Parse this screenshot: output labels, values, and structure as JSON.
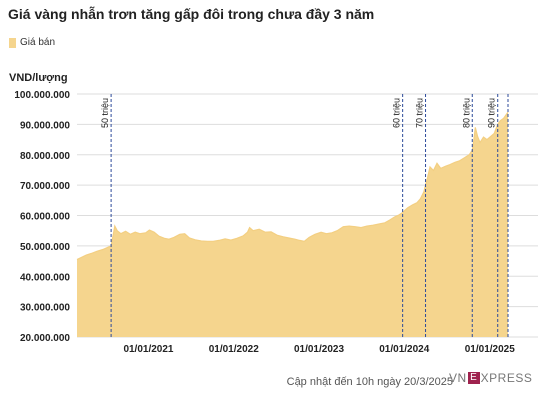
{
  "title": "Giá vàng nhẫn trơn tăng gấp đôi trong chưa đầy 3 năm",
  "footer": "Cập nhật đến 10h ngày 20/3/2025",
  "brand": {
    "pre": "VN",
    "box": "E",
    "post": "XPRESS"
  },
  "colors": {
    "area": "#f5d58e",
    "area_top": "#f3cf82",
    "dashed": "#2c4a9a",
    "grid": "#dddddd"
  },
  "chart_data": {
    "type": "area",
    "title": "Giá vàng nhẫn trơn tăng gấp đôi trong chưa đầy 3 năm",
    "ylabel": "VND/lượng",
    "legend": [
      "Giá bán"
    ],
    "ylim": [
      20000000,
      100000000
    ],
    "xlim": [
      "2020-03-01",
      "2025-03-20"
    ],
    "y_ticks": [
      {
        "value": 100000000,
        "label": "100.000.000"
      },
      {
        "value": 90000000,
        "label": "90.000.000"
      },
      {
        "value": 80000000,
        "label": "80.000.000"
      },
      {
        "value": 70000000,
        "label": "70.000.000"
      },
      {
        "value": 60000000,
        "label": "60.000.000"
      },
      {
        "value": 50000000,
        "label": "50.000.000"
      },
      {
        "value": 40000000,
        "label": "40.000.000"
      },
      {
        "value": 30000000,
        "label": "30.000.000"
      },
      {
        "value": 20000000,
        "label": "20.000.000"
      }
    ],
    "x_ticks": [
      {
        "date": "2021-01-01",
        "label": "01/01/2021"
      },
      {
        "date": "2022-01-01",
        "label": "01/01/2022"
      },
      {
        "date": "2023-01-01",
        "label": "01/01/2023"
      },
      {
        "date": "2024-01-01",
        "label": "01/01/2024"
      },
      {
        "date": "2025-01-01",
        "label": "01/01/2025"
      }
    ],
    "annotations": [
      {
        "date": "2020-07-25",
        "label": "50 triệu"
      },
      {
        "date": "2023-12-25",
        "label": "60 triệu"
      },
      {
        "date": "2024-04-01",
        "label": "70 triệu"
      },
      {
        "date": "2024-10-18",
        "label": "80 triệu"
      },
      {
        "date": "2025-02-04",
        "label": "90 triệu"
      }
    ],
    "series": [
      {
        "name": "Giá bán",
        "points": [
          [
            "2020-03-01",
            45500000
          ],
          [
            "2020-03-20",
            46200000
          ],
          [
            "2020-04-10",
            47000000
          ],
          [
            "2020-05-01",
            47500000
          ],
          [
            "2020-05-25",
            48200000
          ],
          [
            "2020-06-20",
            48800000
          ],
          [
            "2020-07-10",
            49500000
          ],
          [
            "2020-07-25",
            50000000
          ],
          [
            "2020-08-05",
            54500000
          ],
          [
            "2020-08-10",
            56500000
          ],
          [
            "2020-08-20",
            55000000
          ],
          [
            "2020-09-05",
            54000000
          ],
          [
            "2020-09-25",
            54800000
          ],
          [
            "2020-10-15",
            53800000
          ],
          [
            "2020-11-05",
            54500000
          ],
          [
            "2020-11-25",
            54000000
          ],
          [
            "2020-12-20",
            54300000
          ],
          [
            "2021-01-05",
            55200000
          ],
          [
            "2021-01-25",
            54500000
          ],
          [
            "2021-02-15",
            53200000
          ],
          [
            "2021-03-10",
            52500000
          ],
          [
            "2021-03-30",
            52200000
          ],
          [
            "2021-04-20",
            52800000
          ],
          [
            "2021-05-15",
            53800000
          ],
          [
            "2021-06-05",
            54000000
          ],
          [
            "2021-06-25",
            52600000
          ],
          [
            "2021-07-20",
            52000000
          ],
          [
            "2021-08-15",
            51600000
          ],
          [
            "2021-09-10",
            51500000
          ],
          [
            "2021-10-05",
            51500000
          ],
          [
            "2021-10-30",
            51800000
          ],
          [
            "2021-11-25",
            52300000
          ],
          [
            "2021-12-20",
            51900000
          ],
          [
            "2022-01-15",
            52500000
          ],
          [
            "2022-02-10",
            53300000
          ],
          [
            "2022-03-01",
            54500000
          ],
          [
            "2022-03-10",
            56000000
          ],
          [
            "2022-03-25",
            55000000
          ],
          [
            "2022-04-20",
            55500000
          ],
          [
            "2022-05-15",
            54500000
          ],
          [
            "2022-06-10",
            54600000
          ],
          [
            "2022-07-05",
            53500000
          ],
          [
            "2022-08-01",
            53000000
          ],
          [
            "2022-08-25",
            52600000
          ],
          [
            "2022-09-20",
            52200000
          ],
          [
            "2022-10-10",
            51800000
          ],
          [
            "2022-10-30",
            51500000
          ],
          [
            "2022-11-20",
            52800000
          ],
          [
            "2022-12-15",
            53800000
          ],
          [
            "2023-01-10",
            54500000
          ],
          [
            "2023-02-01",
            54000000
          ],
          [
            "2023-02-25",
            54300000
          ],
          [
            "2023-03-20",
            55000000
          ],
          [
            "2023-04-15",
            56300000
          ],
          [
            "2023-05-10",
            56500000
          ],
          [
            "2023-06-05",
            56300000
          ],
          [
            "2023-06-30",
            56000000
          ],
          [
            "2023-07-25",
            56500000
          ],
          [
            "2023-08-20",
            56800000
          ],
          [
            "2023-09-15",
            57200000
          ],
          [
            "2023-10-10",
            57600000
          ],
          [
            "2023-10-30",
            58500000
          ],
          [
            "2023-11-20",
            59500000
          ],
          [
            "2023-12-10",
            60200000
          ],
          [
            "2023-12-25",
            61000000
          ],
          [
            "2024-01-15",
            62500000
          ],
          [
            "2024-02-05",
            63500000
          ],
          [
            "2024-02-25",
            64200000
          ],
          [
            "2024-03-10",
            65500000
          ],
          [
            "2024-03-25",
            67800000
          ],
          [
            "2024-04-01",
            70000000
          ],
          [
            "2024-04-10",
            72500000
          ],
          [
            "2024-04-20",
            76000000
          ],
          [
            "2024-05-05",
            74800000
          ],
          [
            "2024-05-20",
            77200000
          ],
          [
            "2024-06-05",
            75500000
          ],
          [
            "2024-06-25",
            76200000
          ],
          [
            "2024-07-15",
            76800000
          ],
          [
            "2024-08-05",
            77500000
          ],
          [
            "2024-08-25",
            78000000
          ],
          [
            "2024-09-15",
            79000000
          ],
          [
            "2024-10-05",
            80000000
          ],
          [
            "2024-10-18",
            81500000
          ],
          [
            "2024-10-25",
            85000000
          ],
          [
            "2024-10-31",
            89000000
          ],
          [
            "2024-11-10",
            86000000
          ],
          [
            "2024-11-20",
            84000000
          ],
          [
            "2024-12-05",
            85800000
          ],
          [
            "2024-12-20",
            85000000
          ],
          [
            "2025-01-05",
            86000000
          ],
          [
            "2025-01-20",
            87000000
          ],
          [
            "2025-02-04",
            90000000
          ],
          [
            "2025-02-15",
            91200000
          ],
          [
            "2025-03-01",
            92000000
          ],
          [
            "2025-03-10",
            93000000
          ],
          [
            "2025-03-20",
            94000000
          ]
        ]
      }
    ]
  }
}
